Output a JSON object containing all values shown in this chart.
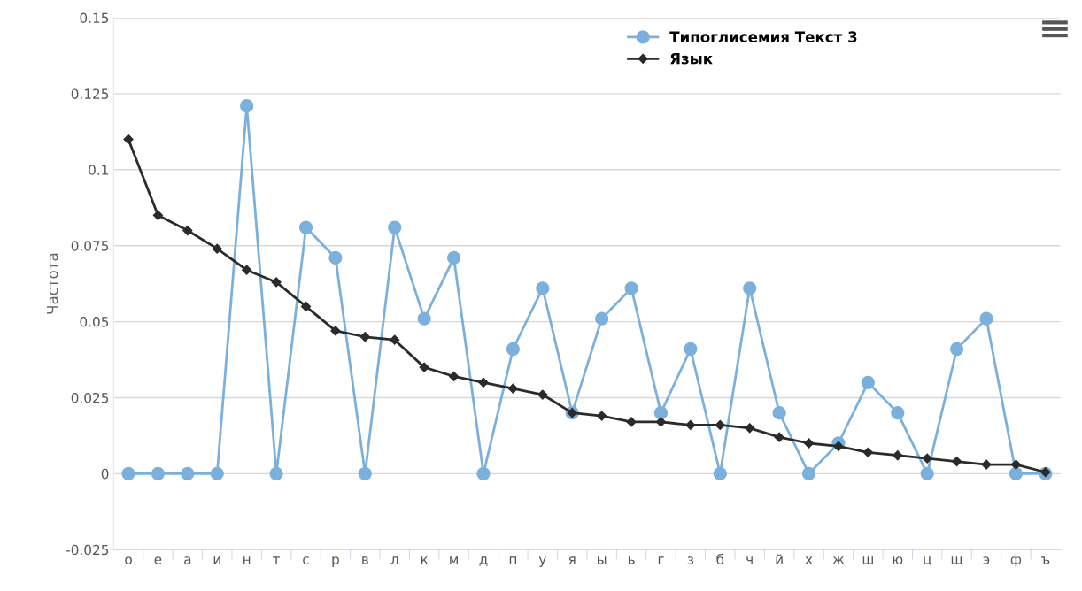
{
  "chart_data": {
    "type": "line",
    "ylabel": "Частота",
    "categories": [
      "о",
      "е",
      "а",
      "и",
      "н",
      "т",
      "с",
      "р",
      "в",
      "л",
      "к",
      "м",
      "д",
      "п",
      "у",
      "я",
      "ы",
      "ь",
      "г",
      "з",
      "б",
      "ч",
      "й",
      "х",
      "ж",
      "ш",
      "ю",
      "ц",
      "щ",
      "э",
      "ф",
      "ъ"
    ],
    "series": [
      {
        "name": "Типоглисемия Текст 3",
        "color": "#7cb0dc",
        "marker": "circle",
        "values": [
          0,
          0,
          0,
          0,
          0.121,
          0,
          0.081,
          0.071,
          0,
          0.081,
          0.051,
          0.071,
          0,
          0.041,
          0.061,
          0.02,
          0.051,
          0.061,
          0.02,
          0.041,
          0,
          0.061,
          0.02,
          0,
          0.01,
          0.03,
          0.02,
          0,
          0.041,
          0.051,
          0,
          0
        ]
      },
      {
        "name": "Язык",
        "color": "#2b2b2b",
        "marker": "diamond",
        "values": [
          0.11,
          0.085,
          0.08,
          0.074,
          0.067,
          0.063,
          0.055,
          0.047,
          0.045,
          0.044,
          0.035,
          0.032,
          0.03,
          0.028,
          0.026,
          0.02,
          0.019,
          0.017,
          0.017,
          0.016,
          0.016,
          0.015,
          0.012,
          0.01,
          0.009,
          0.007,
          0.006,
          0.005,
          0.004,
          0.003,
          0.003,
          0.0005
        ]
      }
    ],
    "ylim": [
      -0.025,
      0.15
    ],
    "yticks": [
      -0.025,
      0,
      0.025,
      0.05,
      0.075,
      0.1,
      0.125,
      0.15
    ],
    "grid": "y",
    "legend": "top right"
  }
}
